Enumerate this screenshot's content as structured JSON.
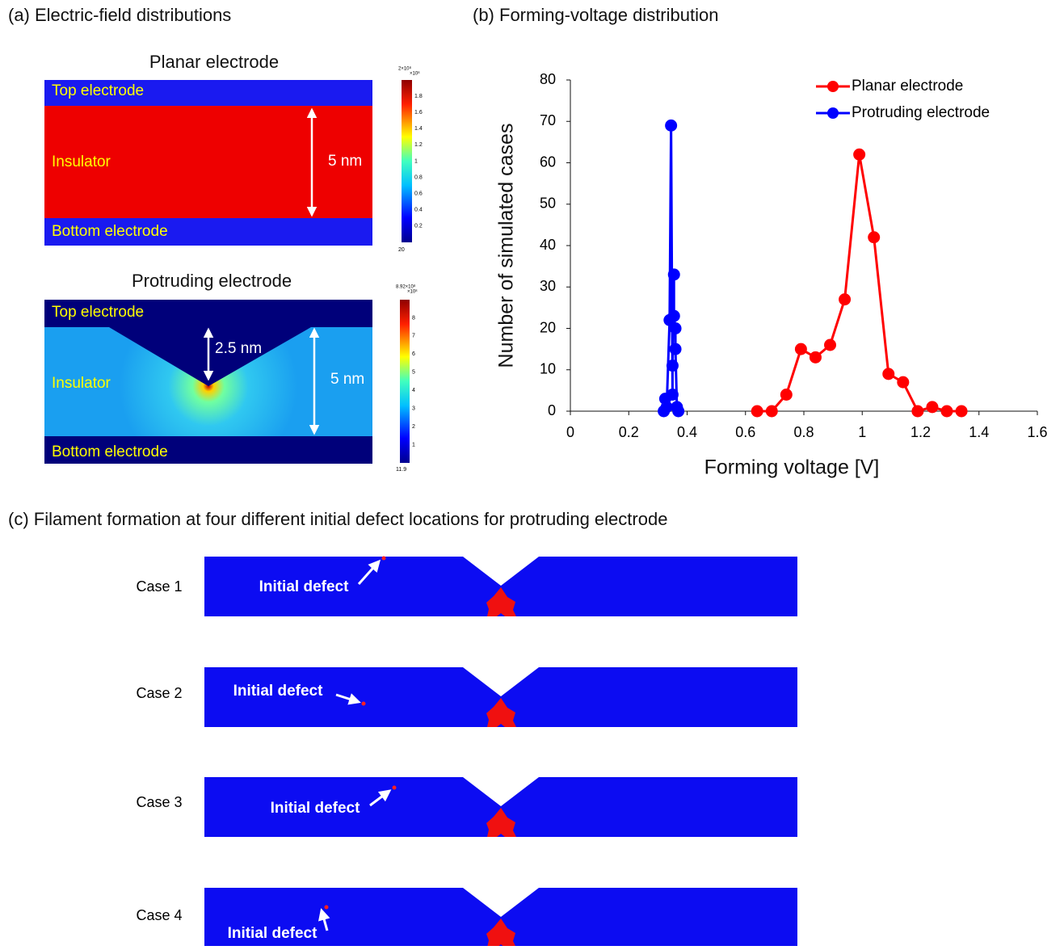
{
  "panel_a": {
    "title": "(a) Electric-field distributions",
    "planar": {
      "title": "Planar electrode",
      "top": "Top electrode",
      "insulator": "Insulator",
      "bottom": "Bottom electrode",
      "thickness": "5 nm",
      "colorbar": {
        "max": "2×10⁸",
        "unit": "×10⁸",
        "labels": [
          "1.8",
          "1.6",
          "1.4",
          "1.2",
          "1",
          "0.8",
          "0.6",
          "0.4",
          "0.2"
        ],
        "min": "20"
      }
    },
    "protruding": {
      "title": "Protruding electrode",
      "top": "Top electrode",
      "insulator": "Insulator",
      "bottom": "Bottom electrode",
      "tip_gap": "2.5 nm",
      "thickness": "5 nm",
      "colorbar": {
        "max": "8.92×10⁸",
        "unit": "×10⁸",
        "labels": [
          "8",
          "7",
          "6",
          "5",
          "4",
          "3",
          "2",
          "1"
        ],
        "min": "11.9"
      }
    }
  },
  "chart_data": {
    "type": "line",
    "title": "(b) Forming-voltage distribution",
    "xlabel": "Forming voltage [V]",
    "ylabel": "Number of simulated cases",
    "xlim": [
      0,
      1.6
    ],
    "xticks": [
      0,
      0.2,
      0.4,
      0.6,
      0.8,
      1,
      1.2,
      1.4,
      1.6
    ],
    "ylim": [
      0,
      80
    ],
    "yticks": [
      0,
      10,
      20,
      30,
      40,
      50,
      60,
      70,
      80
    ],
    "legend": "upper right",
    "series": [
      {
        "name": "Planar electrode",
        "color": "#ff0000",
        "x": [
          0.64,
          0.69,
          0.74,
          0.79,
          0.84,
          0.89,
          0.94,
          0.99,
          1.04,
          1.09,
          1.14,
          1.19,
          1.24,
          1.29,
          1.34
        ],
        "values": [
          0,
          0,
          4,
          15,
          13,
          16,
          27,
          62,
          42,
          9,
          7,
          0,
          1,
          0,
          0
        ]
      },
      {
        "name": "Protruding electrode",
        "color": "#0000ff",
        "x": [
          0.32,
          0.325,
          0.33,
          0.34,
          0.345,
          0.35,
          0.35,
          0.355,
          0.355,
          0.36,
          0.36,
          0.365,
          0.37
        ],
        "values": [
          0,
          3,
          1,
          22,
          69,
          4,
          11,
          33,
          23,
          20,
          15,
          1,
          0
        ]
      }
    ]
  },
  "panel_c": {
    "title": "(c) Filament formation at four different initial defect locations for protruding electrode",
    "cases": [
      {
        "label": "Case 1",
        "defect": "Initial defect"
      },
      {
        "label": "Case 2",
        "defect": "Initial defect"
      },
      {
        "label": "Case 3",
        "defect": "Initial defect"
      },
      {
        "label": "Case 4",
        "defect": "Initial defect"
      }
    ]
  }
}
